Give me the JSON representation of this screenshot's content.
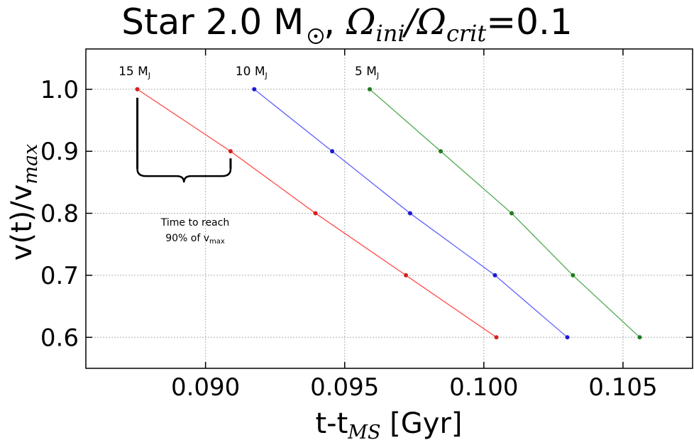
{
  "title": {
    "prefix": "Star 2.0 M",
    "omega_ini": "Ω",
    "ini_sub": "ini",
    "slash": "/",
    "omega_crit": "Ω",
    "crit_sub": "crit",
    "equals": "=",
    "value": "0.1"
  },
  "annotation": {
    "line1": "Time to reach",
    "line2_prefix": "90% of v",
    "line2_sub": "max"
  },
  "colors": {
    "red": "#ff4d4d",
    "red_marker": "#d42020",
    "blue": "#6060ff",
    "blue_marker": "#1a1ad0",
    "green": "#4daa4d",
    "green_marker": "#1f7a1f",
    "grid": "#b0b0b0"
  },
  "chart_data": {
    "type": "line",
    "title": "Star 2.0 M☉, Ωini/Ωcrit=0.1",
    "xlabel": "t-t",
    "xlabel_sub": "MS",
    "xlabel_unit": " [Gyr]",
    "ylabel": "v(t)/v",
    "ylabel_sub": "max",
    "xlim": [
      0.0857,
      0.1075
    ],
    "ylim": [
      0.55,
      1.065
    ],
    "xticks": [
      0.09,
      0.095,
      0.1,
      0.105
    ],
    "xtick_labels": [
      "0.090",
      "0.095",
      "0.100",
      "0.105"
    ],
    "yticks": [
      0.6,
      0.7,
      0.8,
      0.9,
      1.0
    ],
    "ytick_labels": [
      "0.6",
      "0.7",
      "0.8",
      "0.9",
      "1.0"
    ],
    "grid": true,
    "series": [
      {
        "name": "15 MJ",
        "label": "15 M",
        "label_sub": "J",
        "color": "#ff4d4d",
        "marker_color": "#d42020",
        "x": [
          0.08755,
          0.0909,
          0.09395,
          0.0972,
          0.10045
        ],
        "y": [
          1.0,
          0.9,
          0.8,
          0.7,
          0.6
        ]
      },
      {
        "name": "10 MJ",
        "label": "10 M",
        "label_sub": "J",
        "color": "#6060ff",
        "marker_color": "#1a1ad0",
        "x": [
          0.09175,
          0.09455,
          0.09735,
          0.1004,
          0.103
        ],
        "y": [
          1.0,
          0.9,
          0.8,
          0.7,
          0.6
        ]
      },
      {
        "name": "5 MJ",
        "label": "5 M",
        "label_sub": "J",
        "color": "#4daa4d",
        "marker_color": "#1f7a1f",
        "x": [
          0.0959,
          0.09845,
          0.101,
          0.1032,
          0.1056
        ],
        "y": [
          1.0,
          0.9,
          0.8,
          0.7,
          0.6
        ]
      }
    ]
  }
}
